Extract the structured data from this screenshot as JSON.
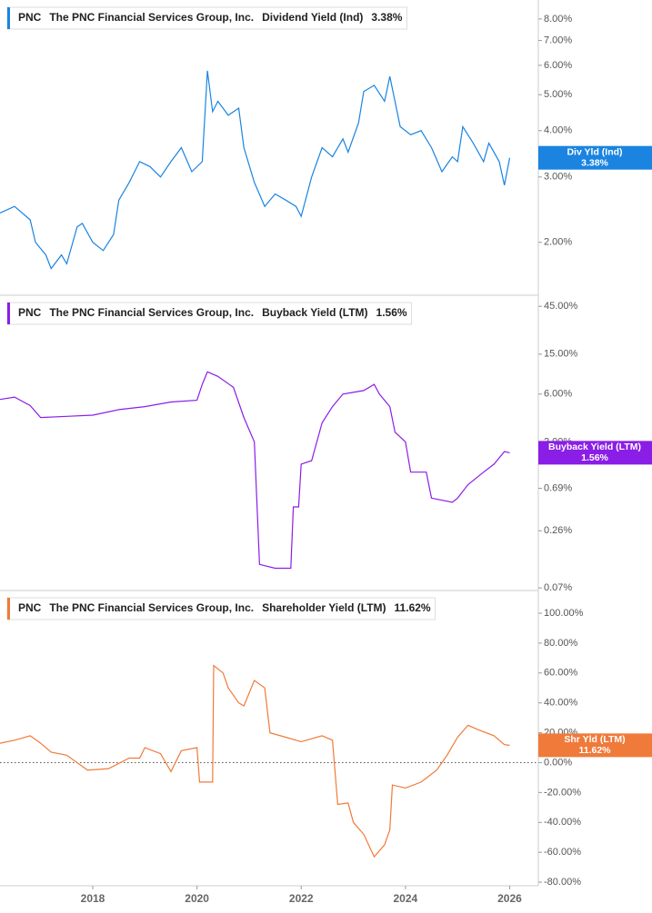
{
  "chart_data": [
    {
      "type": "line",
      "ticker": "PNC",
      "company": "The PNC Financial Services Group, Inc.",
      "log_y": true,
      "xlim": [
        2016.22,
        2026.55
      ],
      "ylim": [
        1.44,
        9.0
      ],
      "yticks": [
        {
          "value": 2,
          "label": "2.00%"
        },
        {
          "value": 3,
          "label": "3.00%"
        },
        {
          "value": 4,
          "label": "4.00%"
        },
        {
          "value": 5,
          "label": "5.00%"
        },
        {
          "value": 6,
          "label": "6.00%"
        },
        {
          "value": 7,
          "label": "7.00%"
        },
        {
          "value": 8,
          "label": "8.00%"
        }
      ],
      "series": [
        {
          "name": "Dividend Yield (Ind)",
          "short_name": "Div Yld (Ind)",
          "color": "#1a84e0",
          "current": {
            "value": 3.38,
            "label": "3.38%"
          },
          "x": [
            2016.22,
            2016.5,
            2016.8,
            2016.9,
            2017.1,
            2017.2,
            2017.4,
            2017.5,
            2017.7,
            2017.8,
            2018.0,
            2018.2,
            2018.4,
            2018.5,
            2018.7,
            2018.9,
            2019.1,
            2019.3,
            2019.5,
            2019.7,
            2019.9,
            2020.1,
            2020.2,
            2020.3,
            2020.4,
            2020.6,
            2020.8,
            2020.9,
            2021.1,
            2021.3,
            2021.5,
            2021.7,
            2021.9,
            2022.0,
            2022.2,
            2022.4,
            2022.6,
            2022.8,
            2022.9,
            2023.1,
            2023.2,
            2023.4,
            2023.6,
            2023.7,
            2023.9,
            2024.1,
            2024.3,
            2024.5,
            2024.7,
            2024.9,
            2025.0,
            2025.1,
            2025.3,
            2025.5,
            2025.6,
            2025.8,
            2025.9,
            2026.0
          ],
          "values": [
            2.4,
            2.5,
            2.3,
            2.0,
            1.85,
            1.7,
            1.85,
            1.75,
            2.2,
            2.25,
            2.0,
            1.9,
            2.1,
            2.6,
            2.9,
            3.3,
            3.2,
            3.0,
            3.3,
            3.6,
            3.1,
            3.3,
            5.8,
            4.5,
            4.8,
            4.4,
            4.6,
            3.6,
            2.9,
            2.5,
            2.7,
            2.6,
            2.5,
            2.35,
            3.0,
            3.6,
            3.4,
            3.8,
            3.5,
            4.2,
            5.1,
            5.3,
            4.8,
            5.6,
            4.1,
            3.9,
            4.0,
            3.6,
            3.1,
            3.4,
            3.3,
            4.1,
            3.7,
            3.3,
            3.7,
            3.3,
            2.85,
            3.38
          ]
        }
      ]
    },
    {
      "type": "line",
      "ticker": "PNC",
      "company": "The PNC Financial Services Group, Inc.",
      "log_y": true,
      "xlim": [
        2016.22,
        2026.55
      ],
      "ylim": [
        0.066,
        58
      ],
      "yticks": [
        {
          "value": 0.07,
          "label": "0.07%"
        },
        {
          "value": 0.26,
          "label": "0.26%"
        },
        {
          "value": 0.69,
          "label": "0.69%"
        },
        {
          "value": 2,
          "label": "2.00%"
        },
        {
          "value": 6,
          "label": "6.00%"
        },
        {
          "value": 15,
          "label": "15.00%"
        },
        {
          "value": 45,
          "label": "45.00%"
        }
      ],
      "series": [
        {
          "name": "Buyback Yield (LTM)",
          "short_name": "Buyback Yield (LTM)",
          "color": "#8a1ee6",
          "current": {
            "value": 1.56,
            "label": "1.56%"
          },
          "x": [
            2016.22,
            2016.5,
            2016.8,
            2017.0,
            2017.5,
            2018.0,
            2018.5,
            2019.0,
            2019.5,
            2020.0,
            2020.1,
            2020.2,
            2020.4,
            2020.7,
            2020.9,
            2021.1,
            2021.2,
            2021.5,
            2021.8,
            2021.85,
            2021.95,
            2022.0,
            2022.2,
            2022.4,
            2022.6,
            2022.8,
            2023.2,
            2023.4,
            2023.5,
            2023.7,
            2023.8,
            2024.0,
            2024.1,
            2024.4,
            2024.5,
            2024.9,
            2025.0,
            2025.2,
            2025.5,
            2025.7,
            2025.9,
            2026.0
          ],
          "values": [
            5.3,
            5.6,
            4.6,
            3.5,
            3.6,
            3.7,
            4.2,
            4.5,
            5.0,
            5.2,
            7.5,
            10,
            9,
            7,
            3.5,
            2.0,
            0.12,
            0.11,
            0.11,
            0.45,
            0.45,
            1.2,
            1.3,
            3.1,
            4.5,
            6,
            6.5,
            7.5,
            6,
            4.5,
            2.5,
            2.0,
            1.0,
            1.0,
            0.55,
            0.5,
            0.55,
            0.75,
            1.0,
            1.2,
            1.6,
            1.56
          ]
        }
      ]
    },
    {
      "type": "line",
      "ticker": "PNC",
      "company": "The PNC Financial Services Group, Inc.",
      "log_y": false,
      "zero_line": true,
      "xlim": [
        2016.22,
        2026.55
      ],
      "ylim": [
        -82.4,
        115.2
      ],
      "xticks": [
        2018,
        2020,
        2022,
        2024,
        2026
      ],
      "yticks": [
        {
          "value": -80,
          "label": "-80.00%"
        },
        {
          "value": -60,
          "label": "-60.00%"
        },
        {
          "value": -40,
          "label": "-40.00%"
        },
        {
          "value": -20,
          "label": "-20.00%"
        },
        {
          "value": 0,
          "label": "0.00%"
        },
        {
          "value": 20,
          "label": "20.00%"
        },
        {
          "value": 40,
          "label": "40.00%"
        },
        {
          "value": 60,
          "label": "60.00%"
        },
        {
          "value": 80,
          "label": "80.00%"
        },
        {
          "value": 100,
          "label": "100.00%"
        }
      ],
      "series": [
        {
          "name": "Shareholder Yield (LTM)",
          "short_name": "Shr Yld (LTM)",
          "color": "#f07a3a",
          "current": {
            "value": 11.62,
            "label": "11.62%"
          },
          "x": [
            2016.22,
            2016.5,
            2016.8,
            2017.0,
            2017.2,
            2017.5,
            2017.9,
            2018.3,
            2018.7,
            2018.9,
            2019.0,
            2019.3,
            2019.5,
            2019.7,
            2020.0,
            2020.05,
            2020.3,
            2020.32,
            2020.5,
            2020.6,
            2020.8,
            2020.9,
            2021.1,
            2021.3,
            2021.4,
            2021.7,
            2022.0,
            2022.4,
            2022.6,
            2022.7,
            2022.9,
            2023.0,
            2023.2,
            2023.4,
            2023.6,
            2023.7,
            2023.75,
            2024.0,
            2024.3,
            2024.6,
            2024.8,
            2025.0,
            2025.2,
            2025.4,
            2025.7,
            2025.9,
            2026.0
          ],
          "values": [
            13,
            15,
            18,
            13,
            7,
            5,
            -5,
            -4,
            3,
            3,
            10,
            6,
            -6,
            8,
            10,
            -13,
            -13,
            65,
            60,
            50,
            40,
            38,
            55,
            50,
            20,
            17,
            14,
            18,
            15,
            -28,
            -27,
            -40,
            -48,
            -63,
            -55,
            -45,
            -15,
            -17,
            -13,
            -5,
            5,
            17,
            25,
            22,
            18,
            12,
            11.62
          ]
        }
      ]
    }
  ]
}
